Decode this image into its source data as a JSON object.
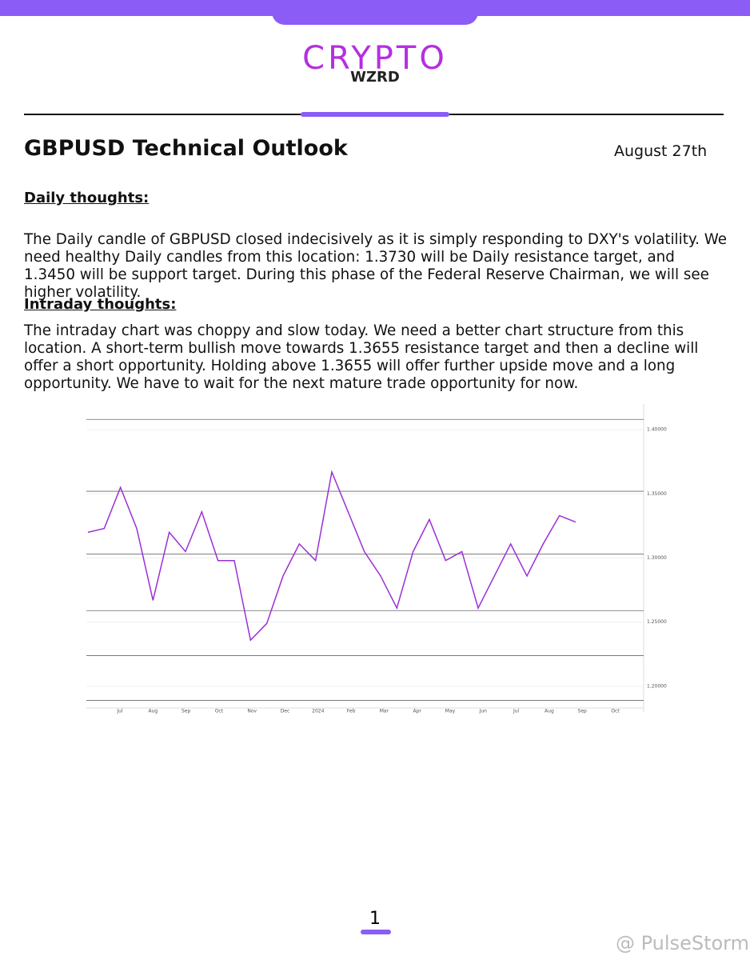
{
  "header": {
    "logo_top": "CRYPTO",
    "logo_bottom": "WZRD"
  },
  "title": "GBPUSD Technical Outlook",
  "date": "August 27th",
  "sections": [
    {
      "heading": "Daily thoughts:",
      "text": "The Daily candle of GBPUSD closed indecisively as it is simply responding to DXY's volatility. We need healthy Daily candles from this location: 1.3730 will be Daily resistance target, and 1.3450 will be support target. During this phase of the Federal Reserve Chairman, we will see higher volatility."
    },
    {
      "heading": "Intraday thoughts:",
      "text": "The intraday chart was choppy and slow today. We need a better chart structure from this location. A short-term bullish move towards 1.3655 resistance target and then a decline will offer a short opportunity. Holding above 1.3655 will offer further upside move and a long opportunity. We have to wait for the next mature trade opportunity for now."
    }
  ],
  "chart_data": {
    "type": "line",
    "color": "#9b2fd6",
    "values": [
      1.32,
      1.323,
      1.355,
      1.323,
      1.267,
      1.32,
      1.305,
      1.336,
      1.298,
      1.298,
      1.236,
      1.249,
      1.286,
      1.311,
      1.298,
      1.367,
      1.336,
      1.305,
      1.286,
      1.261,
      1.305,
      1.33,
      1.298,
      1.305,
      1.261,
      1.286,
      1.311,
      1.286,
      1.311,
      1.333,
      1.328
    ],
    "x_labels": [
      "Jul",
      "Aug",
      "Sep",
      "Oct",
      "Nov",
      "Dec",
      "2024",
      "Feb",
      "Mar",
      "Apr",
      "May",
      "Jun",
      "Jul",
      "Aug",
      "Sep",
      "Oct"
    ],
    "levels": [
      1.408,
      1.352,
      1.303,
      1.259,
      1.224,
      1.189
    ],
    "ylim": [
      1.18,
      1.42
    ],
    "yticks": [
      {
        "value": 1.2,
        "label": "1.20000"
      },
      {
        "value": 1.25,
        "label": "1.25000"
      },
      {
        "value": 1.3,
        "label": "1.30000"
      },
      {
        "value": 1.35,
        "label": "1.35000"
      },
      {
        "value": 1.4,
        "label": "1.40000"
      }
    ],
    "grid": true
  },
  "footer": {
    "page": "1",
    "watermark": "@ PulseStorm"
  }
}
